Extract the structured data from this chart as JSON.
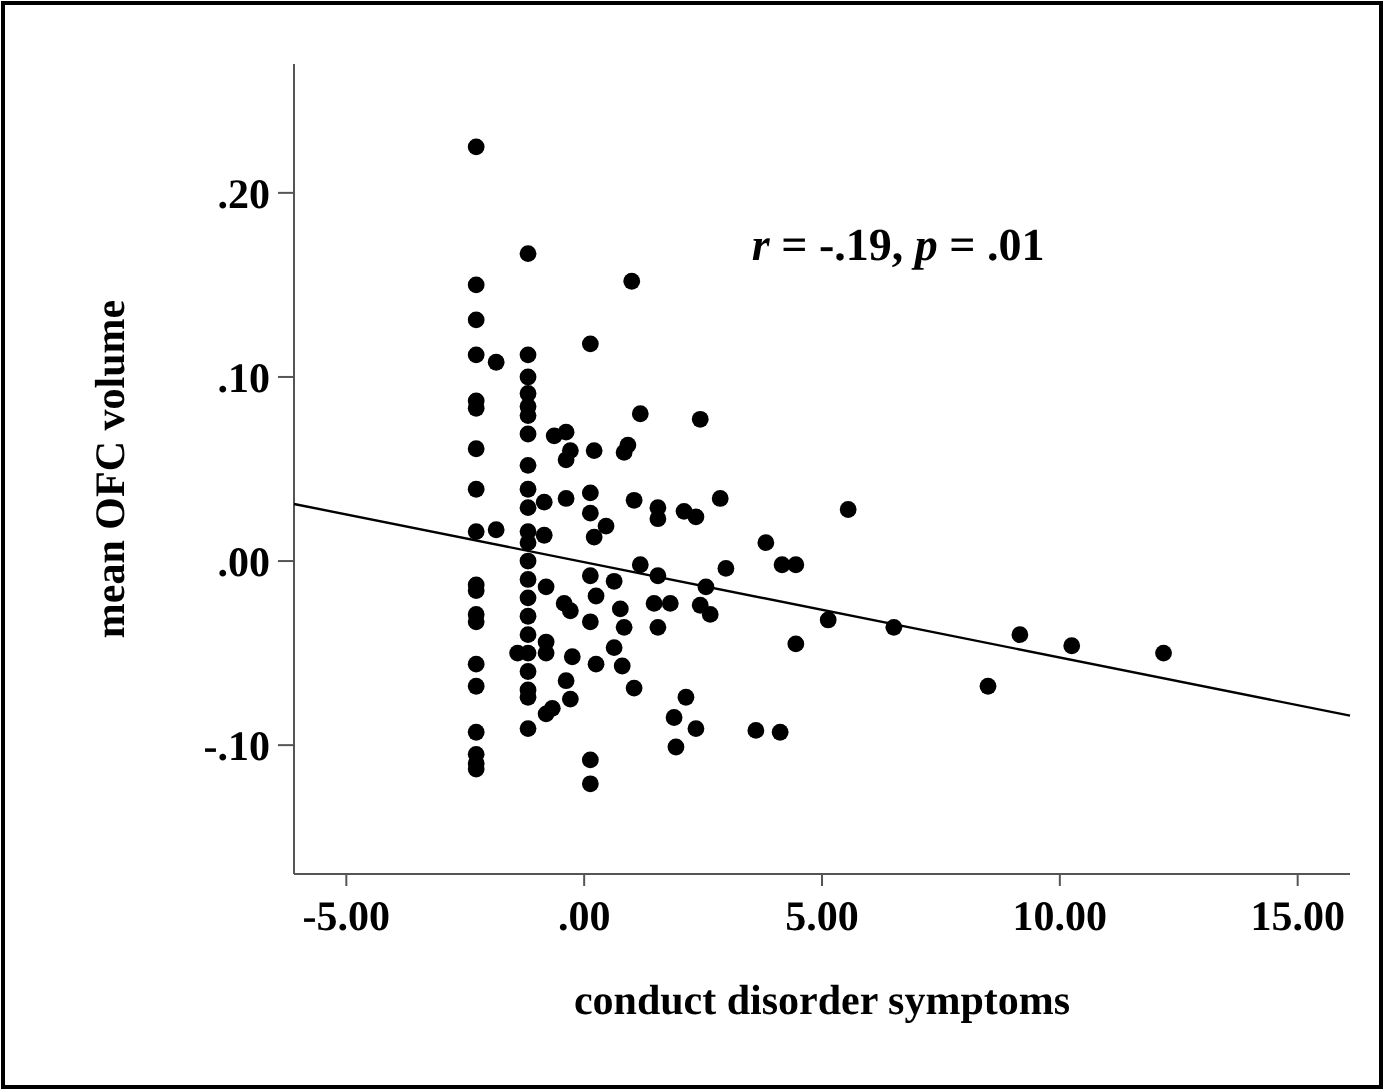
{
  "chart_data": {
    "type": "scatter",
    "xlabel": "conduct disorder symptoms",
    "ylabel": "mean OFC volume",
    "annotations": [
      "r = -.19, p = .01"
    ],
    "xlim": [
      -6.1,
      16.1
    ],
    "ylim": [
      -0.17,
      0.27
    ],
    "xticks": [
      {
        "value": -5,
        "label": "-5.00"
      },
      {
        "value": 0,
        "label": ".00"
      },
      {
        "value": 5,
        "label": "5.00"
      },
      {
        "value": 10,
        "label": "10.00"
      },
      {
        "value": 15,
        "label": "15.00"
      }
    ],
    "yticks": [
      {
        "value": 0.2,
        "label": ".20"
      },
      {
        "value": 0.1,
        "label": ".10"
      },
      {
        "value": 0,
        "label": ".00"
      },
      {
        "value": -0.1,
        "label": "-.10"
      }
    ],
    "grid": false,
    "series": [
      {
        "marker": "circle",
        "color": "#000000",
        "x": [
          -2.27,
          -2.27,
          -2.27,
          -2.27,
          -2.27,
          -2.27,
          -2.27,
          -2.27,
          -2.27,
          -2.27,
          -2.27,
          -2.27,
          -2.27,
          -2.27,
          -2.27,
          -2.27,
          -2.27,
          -2.27,
          -2.27,
          -1.18,
          -1.18,
          -1.18,
          -1.18,
          -1.18,
          -1.18,
          -1.18,
          -1.18,
          -1.18,
          -1.18,
          -1.18,
          -1.18,
          -1.18,
          -1.18,
          -1.18,
          -1.18,
          -1.18,
          -1.18,
          -1.18,
          -1.18,
          -1.18,
          -1.18,
          -1.4,
          -1.85,
          0.13,
          1.0,
          1.18,
          2.44,
          -0.63,
          -0.38,
          -0.29,
          -0.38,
          0.21,
          0.84,
          0.92,
          -0.84,
          -0.38,
          0.13,
          0.13,
          1.05,
          1.55,
          1.55,
          2.1,
          2.35,
          2.86,
          -1.85,
          0.46,
          -0.84,
          0.21,
          1.18,
          1.55,
          2.98,
          2.56,
          0.13,
          0.25,
          0.63,
          -0.8,
          -0.42,
          -0.29,
          0.13,
          0.76,
          0.84,
          1.47,
          1.81,
          1.55,
          2.44,
          2.65,
          -0.8,
          -0.8,
          -0.25,
          0.25,
          0.63,
          0.8,
          -0.38,
          1.05,
          -0.29,
          -0.67,
          -0.8,
          2.14,
          1.89,
          2.35,
          1.93,
          0.13,
          0.13,
          5.55,
          3.82,
          4.16,
          4.45,
          5.13,
          6.51,
          9.16,
          10.25,
          12.18,
          8.49,
          4.45,
          3.61,
          4.12
        ],
        "values": [
          0.225,
          0.15,
          0.131,
          0.112,
          0.087,
          0.083,
          0.061,
          0.039,
          0.016,
          -0.013,
          -0.016,
          -0.029,
          -0.033,
          -0.056,
          -0.068,
          -0.093,
          -0.105,
          -0.11,
          -0.113,
          0.167,
          0.112,
          0.1,
          0.091,
          0.084,
          0.079,
          0.069,
          0.052,
          0.039,
          0.029,
          0.016,
          0.01,
          0,
          -0.01,
          -0.02,
          -0.03,
          -0.04,
          -0.05,
          -0.06,
          -0.07,
          -0.074,
          -0.091,
          -0.05,
          0.108,
          0.118,
          0.152,
          0.08,
          0.077,
          0.068,
          0.07,
          0.06,
          0.055,
          0.06,
          0.059,
          0.063,
          0.032,
          0.034,
          0.037,
          0.026,
          0.033,
          0.029,
          0.023,
          0.027,
          0.024,
          0.034,
          0.017,
          0.019,
          0.014,
          0.013,
          -0.002,
          -0.008,
          -0.004,
          -0.014,
          -0.008,
          -0.019,
          -0.011,
          -0.014,
          -0.023,
          -0.027,
          -0.033,
          -0.026,
          -0.036,
          -0.023,
          -0.023,
          -0.036,
          -0.024,
          -0.029,
          -0.044,
          -0.05,
          -0.052,
          -0.056,
          -0.047,
          -0.057,
          -0.065,
          -0.069,
          -0.075,
          -0.08,
          -0.083,
          -0.074,
          -0.085,
          -0.091,
          -0.101,
          -0.108,
          -0.121,
          0.028,
          0.01,
          -0.002,
          -0.002,
          -0.032,
          -0.036,
          -0.04,
          -0.046,
          -0.05,
          -0.068,
          -0.045,
          -0.092,
          -0.093
        ]
      },
      {
        "type": "line",
        "color": "#000000",
        "x": [
          -6.1,
          16.1
        ],
        "values": [
          0.031,
          -0.084
        ]
      }
    ]
  }
}
